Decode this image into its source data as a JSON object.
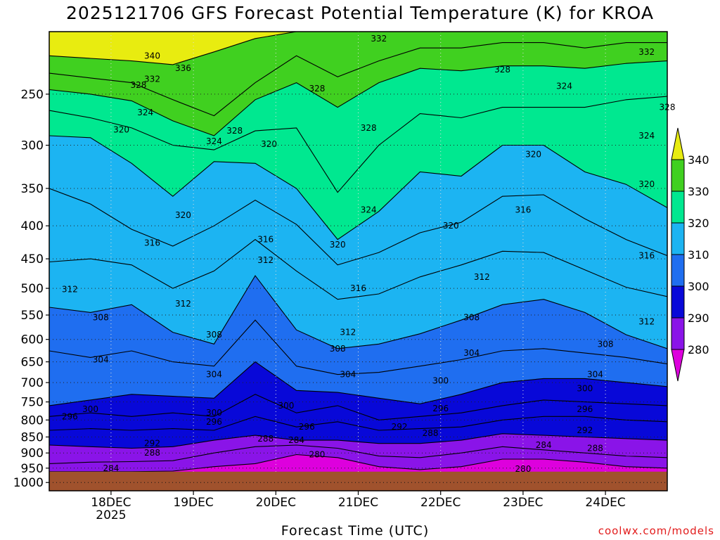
{
  "title": "2025121706 GFS Forecast Potential Temperature (K) for KROA",
  "xlabel": "Forecast Time (UTC)",
  "credit": "coolwx.com/models",
  "colors": {
    "ground": "#a0522d",
    "band_colors": [
      "#dd00dd",
      "#8a14e8",
      "#0808d8",
      "#1f6ef0",
      "#1cb4f2",
      "#00e890",
      "#40d020",
      "#e8ec10"
    ]
  },
  "chart_data": {
    "type": "contour",
    "title": "2025121706 GFS Forecast Potential Temperature (K) for KROA",
    "xlabel": "Forecast Time (UTC)",
    "ylabel": "",
    "y_axis": {
      "scale": "log",
      "direction": "pressure decreasing upward",
      "ylim": [
        1030,
        200
      ],
      "ticks": [
        250,
        300,
        350,
        400,
        450,
        500,
        550,
        600,
        650,
        700,
        750,
        800,
        850,
        900,
        950,
        1000
      ]
    },
    "x_axis": {
      "xlim": [
        "2025-12-17 06",
        "2025-12-24 18"
      ],
      "ticks": [
        {
          "date": "2025-12-18 00",
          "label": "18DEC",
          "sublabel": "2025"
        },
        {
          "date": "2025-12-19 00",
          "label": "19DEC",
          "sublabel": ""
        },
        {
          "date": "2025-12-20 00",
          "label": "20DEC",
          "sublabel": ""
        },
        {
          "date": "2025-12-21 00",
          "label": "21DEC",
          "sublabel": ""
        },
        {
          "date": "2025-12-22 00",
          "label": "22DEC",
          "sublabel": ""
        },
        {
          "date": "2025-12-23 00",
          "label": "23DEC",
          "sublabel": ""
        },
        {
          "date": "2025-12-24 00",
          "label": "24DEC",
          "sublabel": ""
        }
      ]
    },
    "grid": true,
    "colorbar": {
      "ticks": [
        280,
        290,
        300,
        310,
        320,
        330,
        340
      ],
      "bands": [
        {
          "from": 270,
          "to": 280
        },
        {
          "from": 280,
          "to": 290
        },
        {
          "from": 290,
          "to": 300
        },
        {
          "from": 300,
          "to": 310
        },
        {
          "from": 310,
          "to": 320
        },
        {
          "from": 320,
          "to": 330
        },
        {
          "from": 330,
          "to": 340
        },
        {
          "from": 340,
          "to": 350
        }
      ]
    },
    "contour_interval": 4,
    "ground_pressure_hPa": 962,
    "isentropes": [
      {
        "theta": 340,
        "p": [
          218,
          220,
          222,
          225,
          215,
          205,
          200,
          200,
          200,
          200,
          200,
          200,
          200,
          200,
          200,
          200
        ]
      },
      {
        "theta": 332,
        "p": [
          232,
          236,
          240,
          255,
          270,
          240,
          218,
          235,
          222,
          212,
          212,
          208,
          208,
          212,
          208,
          208
        ]
      },
      {
        "theta": 328,
        "p": [
          246,
          250,
          256,
          275,
          290,
          255,
          240,
          262,
          240,
          228,
          230,
          226,
          226,
          228,
          224,
          222
        ]
      },
      {
        "theta": 324,
        "p": [
          265,
          272,
          282,
          300,
          305,
          285,
          282,
          355,
          300,
          268,
          272,
          262,
          262,
          262,
          255,
          252
        ]
      },
      {
        "theta": 320,
        "p": [
          290,
          292,
          320,
          360,
          318,
          320,
          350,
          420,
          380,
          330,
          335,
          300,
          300,
          330,
          345,
          375
        ]
      },
      {
        "theta": 316,
        "p": [
          350,
          370,
          405,
          430,
          400,
          365,
          398,
          460,
          440,
          410,
          395,
          360,
          358,
          390,
          420,
          445
        ]
      },
      {
        "theta": 312,
        "p": [
          455,
          450,
          460,
          500,
          470,
          420,
          470,
          520,
          510,
          480,
          460,
          438,
          440,
          468,
          498,
          515
        ]
      },
      {
        "theta": 308,
        "p": [
          535,
          545,
          530,
          585,
          610,
          478,
          580,
          620,
          610,
          588,
          560,
          530,
          520,
          545,
          590,
          620
        ]
      },
      {
        "theta": 304,
        "p": [
          625,
          640,
          625,
          650,
          660,
          560,
          660,
          680,
          675,
          660,
          645,
          625,
          620,
          630,
          640,
          655
        ]
      },
      {
        "theta": 300,
        "p": [
          760,
          745,
          730,
          735,
          740,
          650,
          720,
          725,
          740,
          755,
          730,
          700,
          690,
          690,
          700,
          710
        ]
      },
      {
        "theta": 296,
        "p": [
          790,
          780,
          790,
          780,
          790,
          730,
          780,
          760,
          800,
          790,
          780,
          760,
          745,
          750,
          755,
          760
        ]
      },
      {
        "theta": 292,
        "p": [
          830,
          825,
          830,
          825,
          830,
          790,
          820,
          805,
          830,
          825,
          820,
          800,
          790,
          790,
          800,
          805
        ]
      },
      {
        "theta": 288,
        "p": [
          875,
          880,
          885,
          880,
          860,
          845,
          860,
          860,
          870,
          870,
          860,
          840,
          845,
          850,
          855,
          860
        ]
      },
      {
        "theta": 284,
        "p": [
          935,
          930,
          928,
          925,
          900,
          880,
          875,
          885,
          910,
          915,
          900,
          880,
          890,
          900,
          910,
          915
        ]
      },
      {
        "theta": 280,
        "p": [
          962,
          962,
          962,
          960,
          945,
          935,
          905,
          915,
          945,
          955,
          945,
          920,
          920,
          930,
          945,
          950
        ]
      }
    ],
    "isentrope_times": [
      "2025-12-17 06",
      "2025-12-17 18",
      "2025-12-18 06",
      "2025-12-18 18",
      "2025-12-19 06",
      "2025-12-19 18",
      "2025-12-20 06",
      "2025-12-20 18",
      "2025-12-21 06",
      "2025-12-21 18",
      "2025-12-22 06",
      "2025-12-22 18",
      "2025-12-23 06",
      "2025-12-23 18",
      "2025-12-24 06",
      "2025-12-24 18"
    ],
    "contour_labels": [
      {
        "text": "340",
        "date": "2025-12-18 12",
        "p": 218
      },
      {
        "text": "336",
        "date": "2025-12-18 21",
        "p": 228
      },
      {
        "text": "332",
        "date": "2025-12-18 12",
        "p": 237
      },
      {
        "text": "328",
        "date": "2025-12-18 08",
        "p": 242
      },
      {
        "text": "324",
        "date": "2025-12-18 10",
        "p": 267
      },
      {
        "text": "320",
        "date": "2025-12-18 03",
        "p": 284
      },
      {
        "text": "332",
        "date": "2025-12-21 06",
        "p": 205
      },
      {
        "text": "328",
        "date": "2025-12-20 12",
        "p": 245
      },
      {
        "text": "328",
        "date": "2025-12-21 03",
        "p": 282
      },
      {
        "text": "328",
        "date": "2025-12-22 18",
        "p": 229
      },
      {
        "text": "324",
        "date": "2025-12-23 12",
        "p": 243
      },
      {
        "text": "332",
        "date": "2025-12-24 12",
        "p": 215
      },
      {
        "text": "328",
        "date": "2025-12-24 18",
        "p": 262
      },
      {
        "text": "324",
        "date": "2025-12-24 12",
        "p": 290
      },
      {
        "text": "328",
        "date": "2025-12-19 12",
        "p": 285
      },
      {
        "text": "324",
        "date": "2025-12-19 06",
        "p": 296
      },
      {
        "text": "320",
        "date": "2025-12-19 22",
        "p": 299
      },
      {
        "text": "320",
        "date": "2025-12-23 03",
        "p": 310
      },
      {
        "text": "320",
        "date": "2025-12-24 12",
        "p": 345
      },
      {
        "text": "324",
        "date": "2025-12-21 03",
        "p": 378
      },
      {
        "text": "320",
        "date": "2025-12-18 21",
        "p": 385
      },
      {
        "text": "316",
        "date": "2025-12-23 00",
        "p": 378
      },
      {
        "text": "320",
        "date": "2025-12-22 03",
        "p": 400
      },
      {
        "text": "316",
        "date": "2025-12-18 12",
        "p": 425
      },
      {
        "text": "316",
        "date": "2025-12-19 21",
        "p": 420
      },
      {
        "text": "320",
        "date": "2025-12-20 18",
        "p": 428
      },
      {
        "text": "316",
        "date": "2025-12-24 12",
        "p": 445
      },
      {
        "text": "312",
        "date": "2025-12-19 21",
        "p": 452
      },
      {
        "text": "312",
        "date": "2025-12-22 12",
        "p": 480
      },
      {
        "text": "316",
        "date": "2025-12-21 00",
        "p": 500
      },
      {
        "text": "312",
        "date": "2025-12-17 12",
        "p": 502
      },
      {
        "text": "312",
        "date": "2025-12-18 21",
        "p": 528
      },
      {
        "text": "312",
        "date": "2025-12-24 12",
        "p": 563
      },
      {
        "text": "308",
        "date": "2025-12-17 21",
        "p": 555
      },
      {
        "text": "312",
        "date": "2025-12-20 21",
        "p": 585
      },
      {
        "text": "308",
        "date": "2025-12-22 09",
        "p": 555
      },
      {
        "text": "308",
        "date": "2025-12-19 06",
        "p": 590
      },
      {
        "text": "308",
        "date": "2025-12-20 18",
        "p": 620
      },
      {
        "text": "308",
        "date": "2025-12-24 00",
        "p": 610
      },
      {
        "text": "304",
        "date": "2025-12-17 21",
        "p": 645
      },
      {
        "text": "304",
        "date": "2025-12-19 06",
        "p": 680
      },
      {
        "text": "304",
        "date": "2025-12-22 09",
        "p": 630
      },
      {
        "text": "304",
        "date": "2025-12-20 21",
        "p": 680
      },
      {
        "text": "304",
        "date": "2025-12-23 21",
        "p": 680
      },
      {
        "text": "300",
        "date": "2025-12-22 00",
        "p": 695
      },
      {
        "text": "300",
        "date": "2025-12-23 18",
        "p": 715
      },
      {
        "text": "300",
        "date": "2025-12-17 18",
        "p": 770
      },
      {
        "text": "300",
        "date": "2025-12-20 03",
        "p": 760
      },
      {
        "text": "300",
        "date": "2025-12-19 06",
        "p": 780
      },
      {
        "text": "296",
        "date": "2025-12-17 12",
        "p": 790
      },
      {
        "text": "296",
        "date": "2025-12-22 00",
        "p": 768
      },
      {
        "text": "296",
        "date": "2025-12-23 18",
        "p": 770
      },
      {
        "text": "296",
        "date": "2025-12-19 06",
        "p": 805
      },
      {
        "text": "296",
        "date": "2025-12-20 09",
        "p": 820
      },
      {
        "text": "292",
        "date": "2025-12-21 12",
        "p": 820
      },
      {
        "text": "292",
        "date": "2025-12-23 18",
        "p": 830
      },
      {
        "text": "292",
        "date": "2025-12-18 12",
        "p": 870
      },
      {
        "text": "288",
        "date": "2025-12-19 21",
        "p": 855
      },
      {
        "text": "284",
        "date": "2025-12-20 06",
        "p": 860
      },
      {
        "text": "288",
        "date": "2025-12-21 21",
        "p": 838
      },
      {
        "text": "288",
        "date": "2025-12-18 12",
        "p": 900
      },
      {
        "text": "288",
        "date": "2025-12-23 21",
        "p": 885
      },
      {
        "text": "284",
        "date": "2025-12-23 06",
        "p": 875
      },
      {
        "text": "280",
        "date": "2025-12-20 12",
        "p": 905
      },
      {
        "text": "284",
        "date": "2025-12-18 00",
        "p": 950
      },
      {
        "text": "280",
        "date": "2025-12-23 00",
        "p": 953
      }
    ]
  }
}
